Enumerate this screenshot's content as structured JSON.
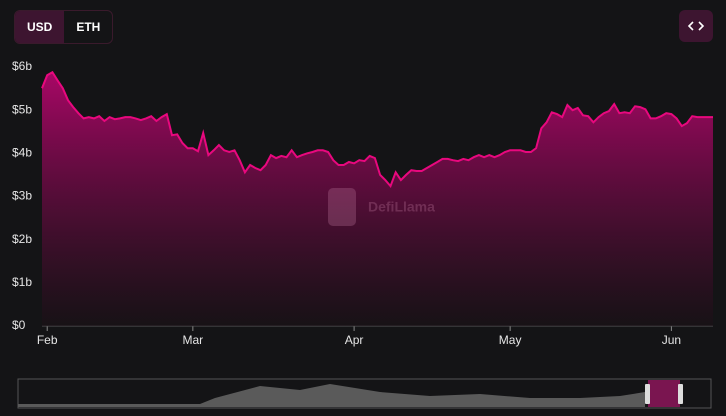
{
  "controls": {
    "currencies": [
      "USD",
      "ETH"
    ]
  },
  "chart_data": {
    "type": "area",
    "watermark": "DefiLlama",
    "color": "#e8087e",
    "categories": [
      null,
      "Feb",
      null,
      null,
      null,
      null,
      null,
      null,
      null,
      null,
      null,
      null,
      null,
      null,
      null,
      null,
      null,
      null,
      null,
      null,
      null,
      null,
      null,
      null,
      null,
      null,
      null,
      null,
      null,
      "Mar",
      null,
      null,
      null,
      null,
      null,
      null,
      null,
      null,
      null,
      null,
      null,
      null,
      null,
      null,
      null,
      null,
      null,
      null,
      null,
      null,
      null,
      null,
      null,
      null,
      null,
      null,
      null,
      null,
      null,
      null,
      "Apr",
      null,
      null,
      null,
      null,
      null,
      null,
      null,
      null,
      null,
      null,
      null,
      null,
      null,
      null,
      null,
      null,
      null,
      null,
      null,
      null,
      null,
      null,
      null,
      null,
      null,
      null,
      null,
      null,
      null,
      "May",
      null,
      null,
      null,
      null,
      null,
      null,
      null,
      null,
      null,
      null,
      null,
      null,
      null,
      null,
      null,
      null,
      null,
      null,
      null,
      null,
      null,
      null,
      null,
      null,
      null,
      null,
      null,
      null,
      null,
      null,
      "Jun",
      null,
      null,
      null,
      null,
      null,
      null,
      null,
      null
    ],
    "values": [
      5.51,
      5.81,
      5.88,
      5.69,
      5.51,
      5.23,
      5.07,
      4.93,
      4.81,
      4.84,
      4.81,
      4.86,
      4.75,
      4.84,
      4.79,
      4.81,
      4.84,
      4.84,
      4.81,
      4.77,
      4.81,
      4.86,
      4.75,
      4.84,
      4.91,
      4.42,
      4.44,
      4.24,
      4.12,
      4.12,
      4.05,
      4.47,
      3.96,
      4.07,
      4.19,
      4.07,
      4.03,
      4.07,
      3.84,
      3.56,
      3.73,
      3.66,
      3.61,
      3.73,
      3.96,
      3.89,
      3.94,
      3.91,
      4.07,
      3.91,
      3.96,
      4.0,
      4.03,
      4.07,
      4.07,
      4.03,
      3.84,
      3.73,
      3.73,
      3.8,
      3.77,
      3.84,
      3.82,
      3.94,
      3.89,
      3.5,
      3.38,
      3.24,
      3.56,
      3.38,
      3.5,
      3.61,
      3.59,
      3.59,
      3.66,
      3.73,
      3.8,
      3.87,
      3.87,
      3.84,
      3.82,
      3.87,
      3.84,
      3.91,
      3.96,
      3.91,
      3.96,
      3.91,
      3.96,
      4.03,
      4.07,
      4.07,
      4.07,
      4.03,
      4.03,
      4.12,
      4.58,
      4.72,
      4.95,
      4.91,
      4.84,
      5.12,
      5.0,
      5.05,
      4.88,
      4.86,
      4.72,
      4.84,
      4.93,
      4.98,
      5.14,
      4.93,
      4.95,
      4.93,
      5.09,
      5.07,
      5.02,
      4.81,
      4.81,
      4.86,
      4.93,
      4.91,
      4.81,
      4.63,
      4.7,
      4.86,
      4.84,
      4.84,
      4.84,
      4.84
    ],
    "ylim": [
      0,
      6
    ],
    "yticks": [
      {
        "value": 0,
        "label": "$0"
      },
      {
        "value": 1,
        "label": "$1b"
      },
      {
        "value": 2,
        "label": "$2b"
      },
      {
        "value": 3,
        "label": "$3b"
      },
      {
        "value": 4,
        "label": "$4b"
      },
      {
        "value": 5,
        "label": "$5b"
      },
      {
        "value": 6,
        "label": "$6b"
      }
    ]
  }
}
